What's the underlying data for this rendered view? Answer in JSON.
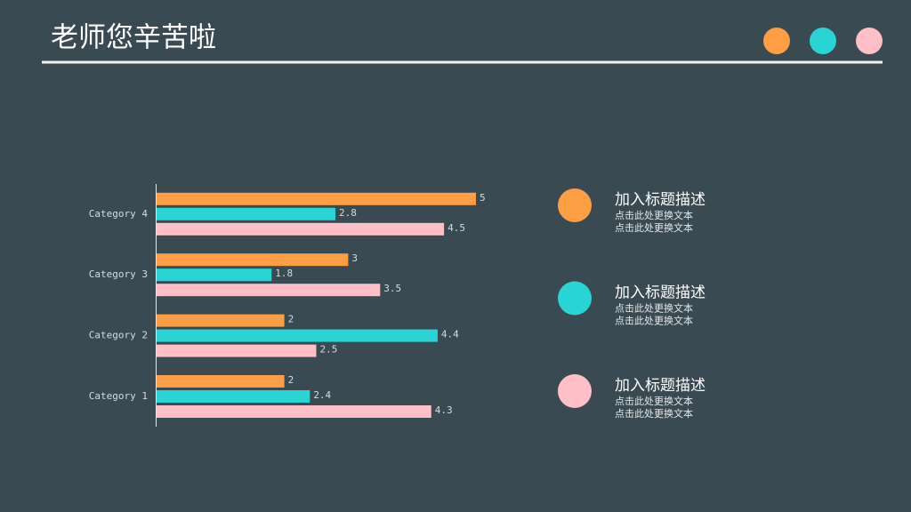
{
  "header": {
    "title": "老师您辛苦啦"
  },
  "chart_data": {
    "type": "bar",
    "orientation": "horizontal",
    "categories": [
      "Category 1",
      "Category 2",
      "Category 3",
      "Category 4"
    ],
    "series": [
      {
        "color": "#fd9d44",
        "values": [
          2,
          2,
          3,
          5
        ]
      },
      {
        "color": "#2ad4d4",
        "values": [
          2.4,
          4.4,
          1.8,
          2.8
        ]
      },
      {
        "color": "#ffbfc7",
        "values": [
          4.3,
          2.5,
          3.5,
          4.5
        ]
      }
    ],
    "xlim": [
      0,
      5
    ],
    "data_labels": true
  },
  "items": [
    {
      "title": "加入标题描述",
      "lines": [
        "点击此处更换文本",
        "点击此处更换文本"
      ]
    },
    {
      "title": "加入标题描述",
      "lines": [
        "点击此处更换文本",
        "点击此处更换文本"
      ]
    },
    {
      "title": "加入标题描述",
      "lines": [
        "点击此处更换文本",
        "点击此处更换文本"
      ]
    }
  ]
}
